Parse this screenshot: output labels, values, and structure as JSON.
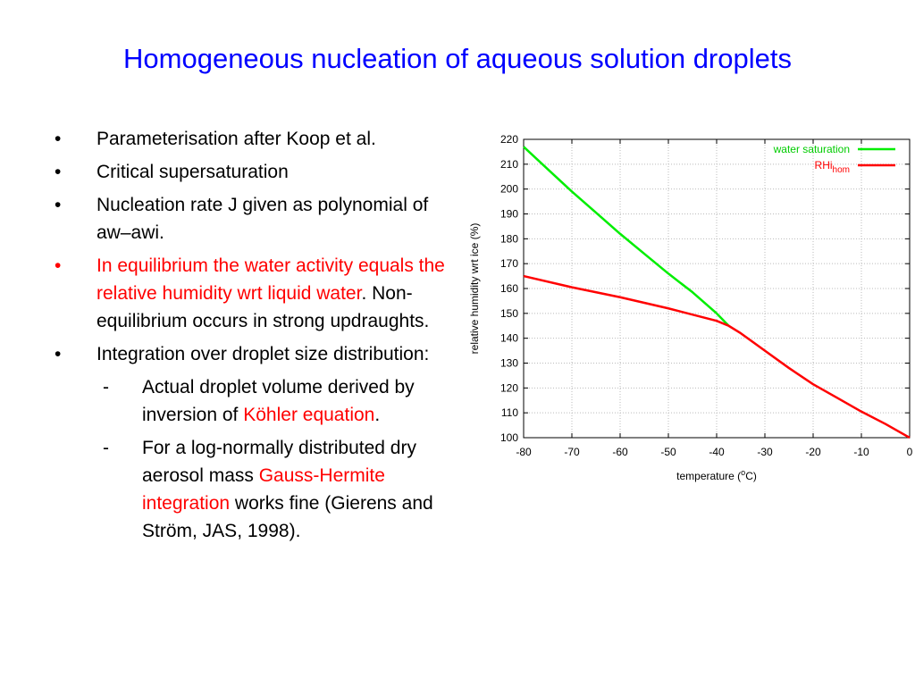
{
  "title": "Homogeneous nucleation of aqueous solution droplets",
  "bullets": [
    {
      "level": 1,
      "marker": "•",
      "segments": [
        {
          "text": "Parameterisation after Koop et al.",
          "red": false
        }
      ]
    },
    {
      "level": 1,
      "marker": "•",
      "segments": [
        {
          "text": "Critical supersaturation",
          "red": false
        }
      ]
    },
    {
      "level": 1,
      "marker": "•",
      "segments": [
        {
          "text": "Nucleation rate J given as polynomial of aw–awi.",
          "red": false
        }
      ]
    },
    {
      "level": 1,
      "marker": "•",
      "red_marker": true,
      "segments": [
        {
          "text": "In equilibrium the water activity equals the relative humidity wrt liquid water",
          "red": true
        },
        {
          "text": ". Non-equilibrium occurs in strong updraughts.",
          "red": false
        }
      ]
    },
    {
      "level": 1,
      "marker": "•",
      "segments": [
        {
          "text": "Integration over droplet size distribution:",
          "red": false
        }
      ]
    },
    {
      "level": 2,
      "marker": "-",
      "segments": [
        {
          "text": "Actual droplet volume derived by inversion of ",
          "red": false
        },
        {
          "text": "Köhler equation",
          "red": true
        },
        {
          "text": ".",
          "red": false
        }
      ]
    },
    {
      "level": 2,
      "marker": "-",
      "segments": [
        {
          "text": "For a log-normally distributed dry aerosol mass ",
          "red": false
        },
        {
          "text": "Gauss-Hermite integration",
          "red": true
        },
        {
          "text": " works fine (Gierens and Ström, JAS, 1998).",
          "red": false
        }
      ]
    }
  ],
  "chart_data": {
    "type": "line",
    "xlabel": "temperature (°C)",
    "xlabel_parts": [
      "temperature (",
      "o",
      "C)"
    ],
    "ylabel": "relative humidity wrt ice (%)",
    "xlim": [
      -80,
      0
    ],
    "ylim": [
      100,
      220
    ],
    "xticks": [
      -80,
      -70,
      -60,
      -50,
      -40,
      -30,
      -20,
      -10,
      0
    ],
    "yticks": [
      100,
      110,
      120,
      130,
      140,
      150,
      160,
      170,
      180,
      190,
      200,
      210,
      220
    ],
    "grid": true,
    "legend_position": "top-right",
    "series": [
      {
        "name": "water saturation",
        "color": "#00ee00",
        "x": [
          -80,
          -75,
          -70,
          -65,
          -60,
          -55,
          -50,
          -45,
          -40,
          -37.5
        ],
        "y": [
          217,
          208,
          199,
          190.5,
          182,
          174,
          166,
          158.5,
          150,
          145
        ]
      },
      {
        "name": "RHi_hom",
        "name_main": "RHi",
        "name_sub": "hom",
        "color": "#ff0000",
        "x": [
          -80,
          -70,
          -60,
          -50,
          -40,
          -37.5,
          -35,
          -30,
          -25,
          -20,
          -15,
          -10,
          -5,
          0
        ],
        "y": [
          165,
          160.5,
          156.5,
          152,
          147,
          145,
          142,
          135,
          128,
          121.5,
          116,
          110.5,
          105.5,
          100
        ]
      }
    ]
  }
}
